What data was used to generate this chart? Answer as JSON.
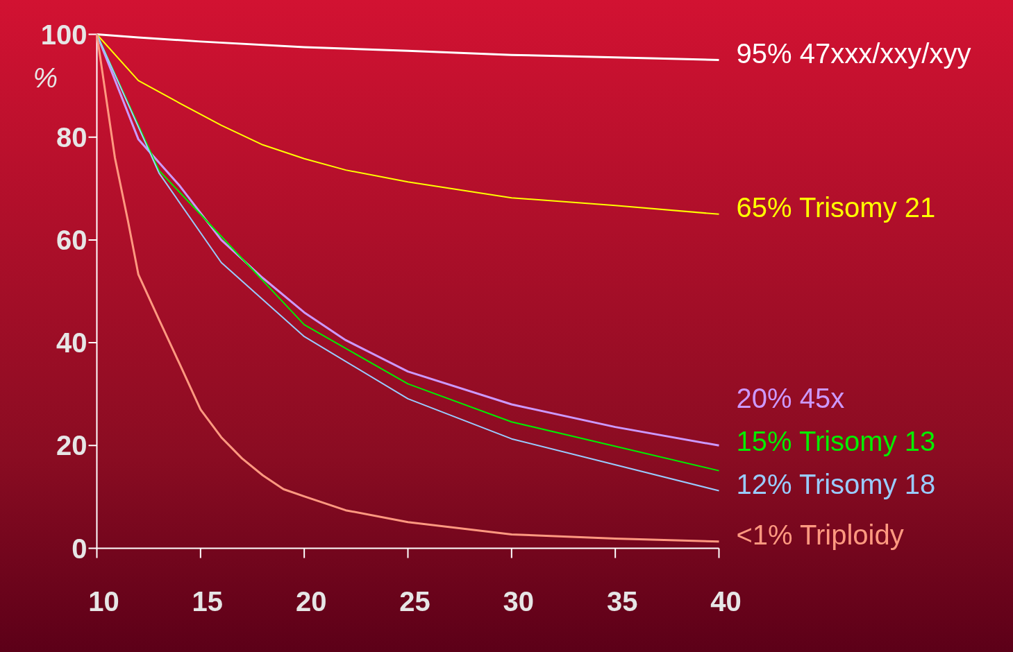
{
  "chart_data": {
    "type": "line",
    "ylabel": "%",
    "xlim": [
      10,
      40
    ],
    "ylim": [
      0,
      100
    ],
    "xticks": [
      10,
      15,
      20,
      25,
      30,
      35,
      40
    ],
    "yticks": [
      0,
      20,
      40,
      60,
      80,
      100
    ],
    "grid": false,
    "marker": "none",
    "line_style": "solid",
    "series": [
      {
        "name": "95% 47xxx/xxy/xyy",
        "color": "#ffffff",
        "x": [
          10,
          12,
          15,
          20,
          25,
          30,
          35,
          40
        ],
        "values": [
          100,
          99.4,
          98.6,
          97.5,
          96.8,
          96,
          95.5,
          95
        ]
      },
      {
        "name": "65%  Trisomy 21",
        "color": "#ffff00",
        "x": [
          10,
          12,
          14,
          16,
          18,
          20,
          22,
          25,
          30,
          35,
          40
        ],
        "values": [
          100,
          91,
          86.6,
          82.3,
          78.5,
          75.8,
          73.6,
          71.3,
          68.2,
          66.7,
          65
        ]
      },
      {
        "name": "20%  45x",
        "color": "#cc99ff",
        "x": [
          10,
          12,
          14,
          16,
          18,
          20,
          22,
          25,
          30,
          35,
          40
        ],
        "values": [
          100,
          79.6,
          70.5,
          60,
          52.6,
          45.9,
          40.5,
          34.4,
          28,
          23.6,
          20
        ]
      },
      {
        "name": "15%  Trisomy 13",
        "color": "#00ee00",
        "x": [
          10,
          13,
          16,
          20,
          25,
          30,
          40
        ],
        "values": [
          100,
          73.5,
          60.7,
          43.5,
          32,
          24.6,
          15.1
        ]
      },
      {
        "name": "12%  Trisomy 18",
        "color": "#99ccff",
        "x": [
          10,
          13,
          16,
          20,
          25,
          30,
          40
        ],
        "values": [
          100,
          73,
          55.6,
          41.2,
          29.1,
          21.3,
          11.2
        ]
      },
      {
        "name": "<1%  Triploidy",
        "color": "#ff9980",
        "x": [
          10,
          10.87,
          11.5,
          12,
          13,
          14,
          15,
          16,
          17,
          18,
          19,
          20,
          22,
          25,
          30,
          35,
          40
        ],
        "values": [
          100,
          76,
          63.7,
          53.3,
          44.5,
          35.8,
          27,
          21.6,
          17.5,
          14.2,
          11.5,
          10.1,
          7.4,
          5.1,
          2.7,
          1.9,
          1.3
        ]
      }
    ]
  }
}
